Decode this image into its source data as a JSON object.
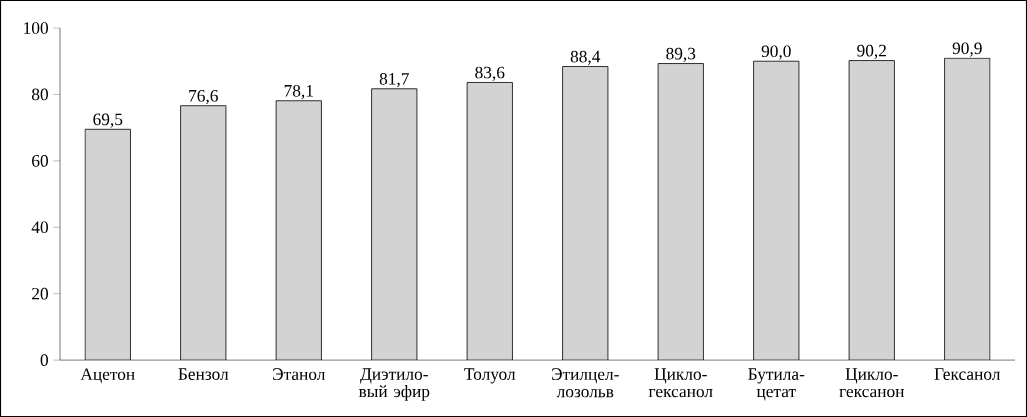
{
  "chart_data": {
    "type": "bar",
    "categories": [
      "Ацетон",
      "Бензол",
      "Этанол",
      "Диэтило-вый эфир",
      "Толуол",
      "Этилцел-лозольв",
      "Цикло-гексанол",
      "Бутила-цетат",
      "Цикло-гексанон",
      "Гексанол"
    ],
    "values": [
      69.5,
      76.6,
      78.1,
      81.7,
      83.6,
      88.4,
      89.3,
      90.0,
      90.2,
      90.9
    ],
    "value_labels": [
      "69,5",
      "76,6",
      "78,1",
      "81,7",
      "83,6",
      "88,4",
      "89,3",
      "90,0",
      "90,2",
      "90,9"
    ],
    "color": "#d3d3d3",
    "ylim": [
      0,
      100
    ],
    "yticks": [
      0,
      20,
      40,
      60,
      80,
      100
    ],
    "grid": false
  }
}
